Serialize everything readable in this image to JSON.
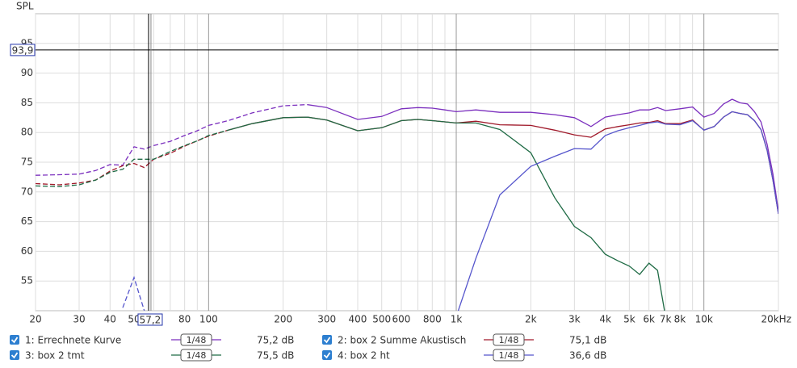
{
  "chart_data": {
    "type": "line",
    "y_label": "SPL",
    "log_x": true,
    "grid": true,
    "xlim": [
      20,
      20000
    ],
    "ylim": [
      50,
      100
    ],
    "xticks": [
      20,
      30,
      40,
      50,
      80,
      100,
      200,
      300,
      400,
      500,
      600,
      800,
      {
        "value": 1000,
        "label": "1k"
      },
      {
        "value": 2000,
        "label": "2k"
      },
      {
        "value": 3000,
        "label": "3k"
      },
      {
        "value": 4000,
        "label": "4k"
      },
      {
        "value": 5000,
        "label": "5k"
      },
      {
        "value": 6000,
        "label": "6k"
      },
      {
        "value": 7000,
        "label": "7k"
      },
      {
        "value": 8000,
        "label": "8k"
      },
      {
        "value": 10000,
        "label": "10k"
      },
      {
        "value": 20000,
        "label": "20kHz"
      }
    ],
    "xminor": [
      60,
      70,
      90,
      700,
      900,
      9000
    ],
    "yticks": [
      55,
      60,
      65,
      70,
      75,
      80,
      85,
      90,
      95
    ],
    "cursor": {
      "x": {
        "value": 57.2,
        "label": "57,2"
      },
      "y": {
        "value": 93.9,
        "label": "93,9"
      }
    },
    "x": [
      20,
      25,
      30,
      35,
      40,
      45,
      50,
      55,
      60,
      70,
      80,
      90,
      100,
      120,
      150,
      200,
      250,
      300,
      400,
      500,
      600,
      700,
      800,
      900,
      1000,
      1200,
      1500,
      2000,
      2500,
      3000,
      3500,
      4000,
      4500,
      5000,
      5500,
      6000,
      6500,
      7000,
      8000,
      9000,
      10000,
      11000,
      12000,
      13000,
      14000,
      15000,
      16000,
      17000,
      18000,
      19000,
      20000
    ],
    "series": [
      {
        "name": "1: Errechnete Kurve",
        "color": "#7b2fbe",
        "smoothing": "1/48",
        "readout": "75,2 dB",
        "dashed_below": 300,
        "values": [
          72.8,
          72.9,
          73.0,
          73.6,
          74.6,
          74.5,
          77.6,
          77.2,
          77.8,
          78.5,
          79.5,
          80.3,
          81.2,
          82.0,
          83.3,
          84.5,
          84.7,
          84.2,
          82.2,
          82.7,
          84.0,
          84.2,
          84.1,
          83.8,
          83.5,
          83.8,
          83.4,
          83.4,
          83.0,
          82.5,
          81.0,
          82.6,
          83.0,
          83.3,
          83.8,
          83.8,
          84.2,
          83.7,
          84.0,
          84.3,
          82.6,
          83.2,
          84.8,
          85.6,
          85.0,
          84.8,
          83.5,
          81.8,
          78.0,
          73.0,
          66.8
        ]
      },
      {
        "name": "2: box 2 Summe Akustisch",
        "color": "#a0192a",
        "smoothing": "1/48",
        "readout": "75,1 dB",
        "dashed_below": 150,
        "values": [
          71.4,
          71.2,
          71.5,
          72.0,
          73.5,
          74.4,
          74.8,
          74.1,
          75.5,
          76.5,
          77.7,
          78.6,
          79.4,
          80.4,
          81.5,
          82.5,
          82.6,
          82.1,
          80.3,
          80.8,
          82.0,
          82.2,
          82.0,
          81.8,
          81.6,
          81.9,
          81.3,
          81.2,
          80.4,
          79.6,
          79.2,
          80.6,
          81.0,
          81.3,
          81.6,
          81.7,
          82.0,
          81.5,
          81.5,
          82.1,
          80.4,
          81.0,
          82.6,
          83.5,
          83.2,
          83.0,
          82.0,
          80.5,
          77.0,
          72.0,
          66.3
        ]
      },
      {
        "name": "3: box 2 tmt",
        "color": "#1f6b45",
        "smoothing": "1/48",
        "readout": "75,5 dB",
        "dashed_below": 150,
        "values": [
          71.0,
          70.9,
          71.2,
          72.0,
          73.3,
          73.8,
          75.5,
          75.5,
          75.5,
          76.8,
          77.8,
          78.6,
          79.5,
          80.4,
          81.5,
          82.5,
          82.6,
          82.1,
          80.3,
          80.8,
          82.0,
          82.2,
          82.0,
          81.8,
          81.6,
          81.6,
          80.5,
          76.6,
          69.0,
          64.2,
          62.3,
          59.5,
          58.4,
          57.5,
          56.1,
          58.0,
          56.8,
          49.0,
          null,
          null,
          null,
          null,
          null,
          null,
          null,
          null,
          null,
          null,
          null,
          null,
          null
        ]
      },
      {
        "name": "4: box 2 ht",
        "color": "#5555cc",
        "smoothing": "1/48",
        "readout": "36,6 dB",
        "dashed_below": 100,
        "values": [
          null,
          null,
          null,
          null,
          null,
          50.5,
          55.6,
          50.0,
          null,
          null,
          null,
          null,
          null,
          null,
          null,
          null,
          null,
          null,
          null,
          null,
          null,
          null,
          null,
          null,
          49.0,
          58.8,
          69.5,
          74.3,
          76.0,
          77.3,
          77.2,
          79.5,
          80.3,
          80.8,
          81.2,
          81.6,
          81.8,
          81.4,
          81.3,
          82.0,
          80.4,
          81.0,
          82.6,
          83.5,
          83.2,
          83.0,
          82.0,
          80.5,
          77.0,
          72.0,
          66.3
        ]
      }
    ]
  }
}
